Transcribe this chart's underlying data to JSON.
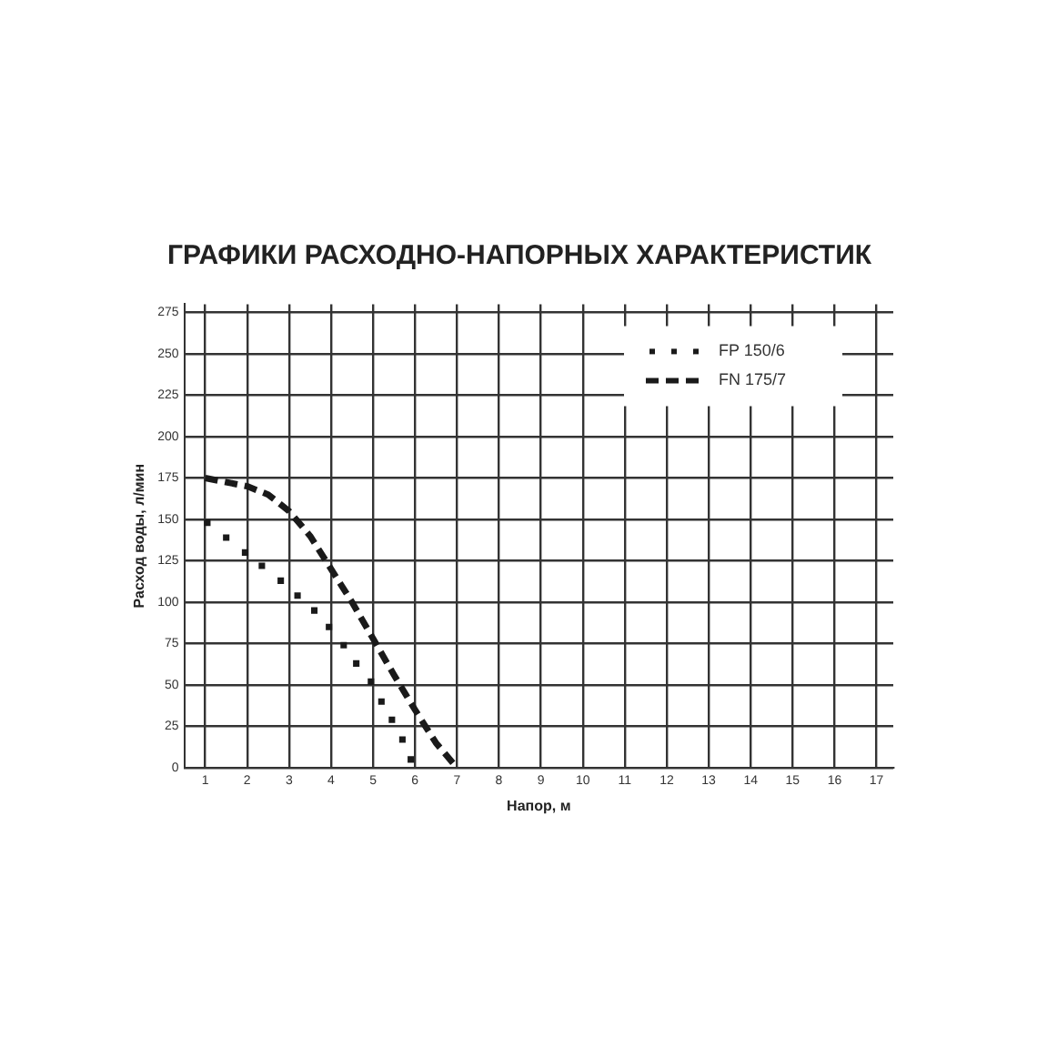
{
  "chart_data": {
    "type": "line",
    "title": "ГРАФИКИ РАСХОДНО-НАПОРНЫХ ХАРАКТЕРИСТИК",
    "xlabel": "Напор, м",
    "ylabel": "Расход воды, л/мин",
    "xlim": [
      0.5,
      17.4
    ],
    "xticks": [
      1,
      2,
      3,
      4,
      5,
      6,
      7,
      8,
      9,
      10,
      11,
      12,
      13,
      14,
      15,
      16,
      17
    ],
    "ylim": [
      0,
      280
    ],
    "yticks": [
      0,
      25,
      50,
      75,
      100,
      125,
      150,
      175,
      200,
      225,
      250,
      275
    ],
    "grid": true,
    "legend": "top right",
    "series": [
      {
        "name": "FP 150/6",
        "type": "scatter",
        "marker": "square",
        "color": "#1a1a1a",
        "x": [
          1.05,
          1.5,
          1.95,
          2.35,
          2.8,
          3.2,
          3.6,
          3.95,
          4.3,
          4.6,
          4.95,
          5.2,
          5.45,
          5.7,
          5.9
        ],
        "values": [
          148,
          139,
          130,
          122,
          113,
          104,
          95,
          85,
          74,
          63,
          52,
          40,
          29,
          17,
          5
        ]
      },
      {
        "name": "FN 175/7",
        "type": "line",
        "line_style": "dashed",
        "marker": "none",
        "color": "#1a1a1a",
        "x": [
          1,
          2,
          2.5,
          3,
          3.5,
          4,
          4.5,
          5,
          5.5,
          6,
          6.5,
          7
        ],
        "values": [
          175,
          170,
          165,
          155,
          140,
          120,
          100,
          78,
          56,
          35,
          15,
          0
        ]
      }
    ]
  }
}
